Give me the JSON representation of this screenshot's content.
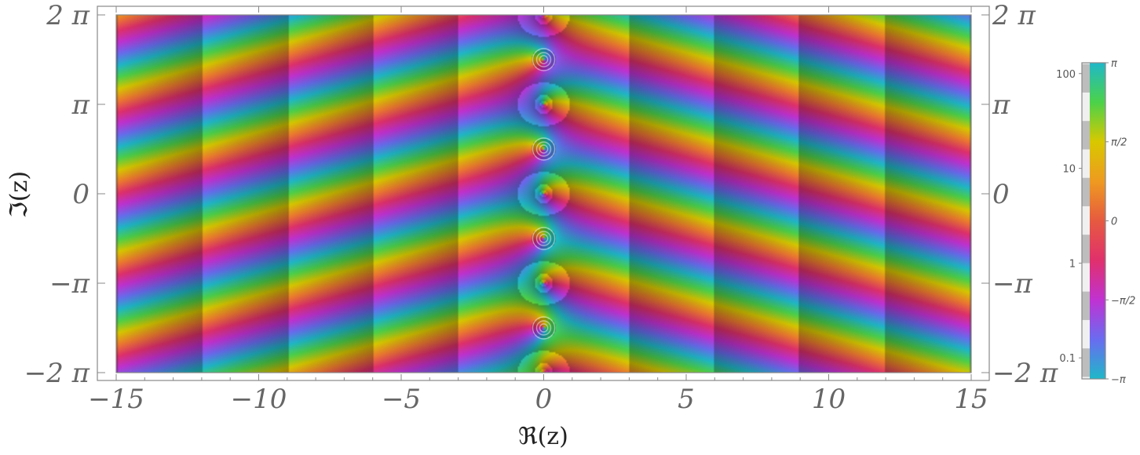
{
  "chart_data": {
    "type": "heatmap",
    "title": "",
    "xlabel": "ℜ(z)",
    "ylabel": "ℑ(z)",
    "xlim": [
      -15,
      15
    ],
    "ylim": [
      -6.2832,
      6.2832
    ],
    "x_ticks": [
      {
        "value": -15,
        "label": "−15"
      },
      {
        "value": -10,
        "label": "−10"
      },
      {
        "value": -5,
        "label": "−5"
      },
      {
        "value": 0,
        "label": "0"
      },
      {
        "value": 5,
        "label": "5"
      },
      {
        "value": 10,
        "label": "10"
      },
      {
        "value": 15,
        "label": "15"
      }
    ],
    "y_ticks": [
      {
        "value": 6.2832,
        "label": "2 π"
      },
      {
        "value": 3.1416,
        "label": "π"
      },
      {
        "value": 0,
        "label": "0"
      },
      {
        "value": -3.1416,
        "label": "−π"
      },
      {
        "value": -6.2832,
        "label": "−2 π"
      }
    ],
    "poles": [
      {
        "x": 0,
        "y": 4.7124
      },
      {
        "x": 0,
        "y": 1.5708
      },
      {
        "x": 0,
        "y": -1.5708
      },
      {
        "x": 0,
        "y": -4.7124
      }
    ],
    "colorbar": {
      "phase_ticks": [
        {
          "value": 3.1416,
          "label": "π"
        },
        {
          "value": 1.5708,
          "label": "π/2"
        },
        {
          "value": 0,
          "label": "0"
        },
        {
          "value": -1.5708,
          "label": "−π/2"
        },
        {
          "value": -3.1416,
          "label": "−π"
        }
      ],
      "magnitude_ticks": [
        {
          "value": 100,
          "label": "100"
        },
        {
          "value": 10,
          "label": "10"
        },
        {
          "value": 1,
          "label": "1"
        },
        {
          "value": 0.1,
          "label": "0.1"
        }
      ],
      "magnitude_range": [
        0.06,
        130
      ],
      "phase_colors": [
        "#1fb8c8",
        "#6a6cf0",
        "#c032d2",
        "#e0306c",
        "#ee7a30",
        "#d8c800",
        "#4cd24a",
        "#1fb8c8"
      ]
    }
  }
}
